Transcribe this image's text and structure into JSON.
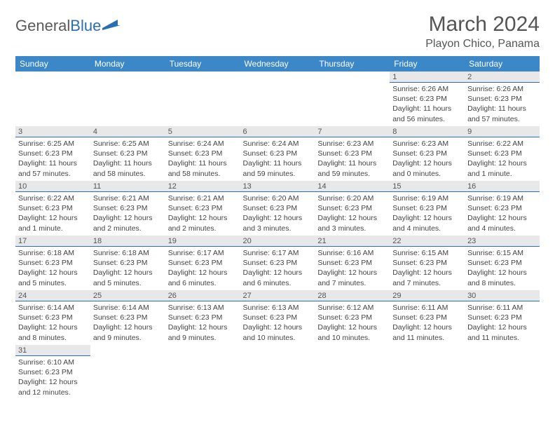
{
  "logo": {
    "part1": "General",
    "part2": "Blue"
  },
  "title": "March 2024",
  "location": "Playon Chico, Panama",
  "colors": {
    "header_bg": "#3b87c8",
    "daynum_bg": "#e8e8e8",
    "daynum_border": "#2b6fb3",
    "logo_gray": "#5a5a5a",
    "logo_blue": "#2b6fb3",
    "text": "#444444",
    "background": "#ffffff"
  },
  "weekdays": [
    "Sunday",
    "Monday",
    "Tuesday",
    "Wednesday",
    "Thursday",
    "Friday",
    "Saturday"
  ],
  "weeks": [
    [
      null,
      null,
      null,
      null,
      null,
      {
        "n": "1",
        "sr": "6:26 AM",
        "ss": "6:23 PM",
        "dl": "11 hours and 56 minutes."
      },
      {
        "n": "2",
        "sr": "6:26 AM",
        "ss": "6:23 PM",
        "dl": "11 hours and 57 minutes."
      }
    ],
    [
      {
        "n": "3",
        "sr": "6:25 AM",
        "ss": "6:23 PM",
        "dl": "11 hours and 57 minutes."
      },
      {
        "n": "4",
        "sr": "6:25 AM",
        "ss": "6:23 PM",
        "dl": "11 hours and 58 minutes."
      },
      {
        "n": "5",
        "sr": "6:24 AM",
        "ss": "6:23 PM",
        "dl": "11 hours and 58 minutes."
      },
      {
        "n": "6",
        "sr": "6:24 AM",
        "ss": "6:23 PM",
        "dl": "11 hours and 59 minutes."
      },
      {
        "n": "7",
        "sr": "6:23 AM",
        "ss": "6:23 PM",
        "dl": "11 hours and 59 minutes."
      },
      {
        "n": "8",
        "sr": "6:23 AM",
        "ss": "6:23 PM",
        "dl": "12 hours and 0 minutes."
      },
      {
        "n": "9",
        "sr": "6:22 AM",
        "ss": "6:23 PM",
        "dl": "12 hours and 1 minute."
      }
    ],
    [
      {
        "n": "10",
        "sr": "6:22 AM",
        "ss": "6:23 PM",
        "dl": "12 hours and 1 minute."
      },
      {
        "n": "11",
        "sr": "6:21 AM",
        "ss": "6:23 PM",
        "dl": "12 hours and 2 minutes."
      },
      {
        "n": "12",
        "sr": "6:21 AM",
        "ss": "6:23 PM",
        "dl": "12 hours and 2 minutes."
      },
      {
        "n": "13",
        "sr": "6:20 AM",
        "ss": "6:23 PM",
        "dl": "12 hours and 3 minutes."
      },
      {
        "n": "14",
        "sr": "6:20 AM",
        "ss": "6:23 PM",
        "dl": "12 hours and 3 minutes."
      },
      {
        "n": "15",
        "sr": "6:19 AM",
        "ss": "6:23 PM",
        "dl": "12 hours and 4 minutes."
      },
      {
        "n": "16",
        "sr": "6:19 AM",
        "ss": "6:23 PM",
        "dl": "12 hours and 4 minutes."
      }
    ],
    [
      {
        "n": "17",
        "sr": "6:18 AM",
        "ss": "6:23 PM",
        "dl": "12 hours and 5 minutes."
      },
      {
        "n": "18",
        "sr": "6:18 AM",
        "ss": "6:23 PM",
        "dl": "12 hours and 5 minutes."
      },
      {
        "n": "19",
        "sr": "6:17 AM",
        "ss": "6:23 PM",
        "dl": "12 hours and 6 minutes."
      },
      {
        "n": "20",
        "sr": "6:17 AM",
        "ss": "6:23 PM",
        "dl": "12 hours and 6 minutes."
      },
      {
        "n": "21",
        "sr": "6:16 AM",
        "ss": "6:23 PM",
        "dl": "12 hours and 7 minutes."
      },
      {
        "n": "22",
        "sr": "6:15 AM",
        "ss": "6:23 PM",
        "dl": "12 hours and 7 minutes."
      },
      {
        "n": "23",
        "sr": "6:15 AM",
        "ss": "6:23 PM",
        "dl": "12 hours and 8 minutes."
      }
    ],
    [
      {
        "n": "24",
        "sr": "6:14 AM",
        "ss": "6:23 PM",
        "dl": "12 hours and 8 minutes."
      },
      {
        "n": "25",
        "sr": "6:14 AM",
        "ss": "6:23 PM",
        "dl": "12 hours and 9 minutes."
      },
      {
        "n": "26",
        "sr": "6:13 AM",
        "ss": "6:23 PM",
        "dl": "12 hours and 9 minutes."
      },
      {
        "n": "27",
        "sr": "6:13 AM",
        "ss": "6:23 PM",
        "dl": "12 hours and 10 minutes."
      },
      {
        "n": "28",
        "sr": "6:12 AM",
        "ss": "6:23 PM",
        "dl": "12 hours and 10 minutes."
      },
      {
        "n": "29",
        "sr": "6:11 AM",
        "ss": "6:23 PM",
        "dl": "12 hours and 11 minutes."
      },
      {
        "n": "30",
        "sr": "6:11 AM",
        "ss": "6:23 PM",
        "dl": "12 hours and 11 minutes."
      }
    ],
    [
      {
        "n": "31",
        "sr": "6:10 AM",
        "ss": "6:23 PM",
        "dl": "12 hours and 12 minutes."
      },
      null,
      null,
      null,
      null,
      null,
      null
    ]
  ],
  "labels": {
    "sunrise": "Sunrise:",
    "sunset": "Sunset:",
    "daylight": "Daylight:"
  }
}
